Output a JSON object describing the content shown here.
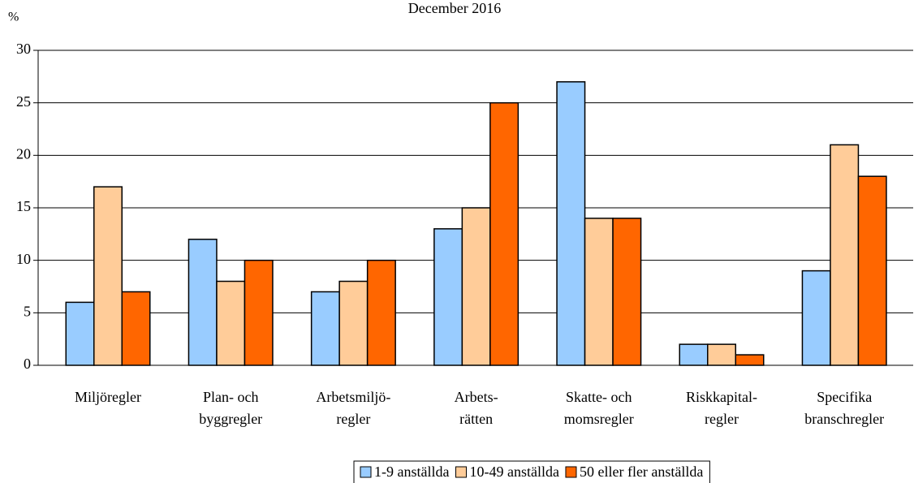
{
  "chart_data": {
    "type": "bar",
    "title": "December 2016",
    "y_label": "%",
    "categories": [
      "Miljöregler",
      "Plan- och\nbyggregler",
      "Arbetsmiljö-\nregler",
      "Arbets-\nrätten",
      "Skatte- och\nmomsregler",
      "Riskkapital-\nregler",
      "Specifika\nbranschregler"
    ],
    "series": [
      {
        "name": "1-9 anställda",
        "color": "#99ccff",
        "values": [
          6,
          12,
          7,
          13,
          27,
          2,
          9
        ]
      },
      {
        "name": "10-49 anställda",
        "color": "#ffcc99",
        "values": [
          17,
          8,
          8,
          15,
          14,
          2,
          21
        ]
      },
      {
        "name": "50 eller fler anställda",
        "color": "#ff6600",
        "values": [
          7,
          10,
          10,
          25,
          14,
          1,
          18
        ]
      }
    ],
    "ylim": [
      0,
      30
    ],
    "yticks": [
      0,
      5,
      10,
      15,
      20,
      25,
      30
    ],
    "grid": true,
    "legend": "bottom"
  }
}
